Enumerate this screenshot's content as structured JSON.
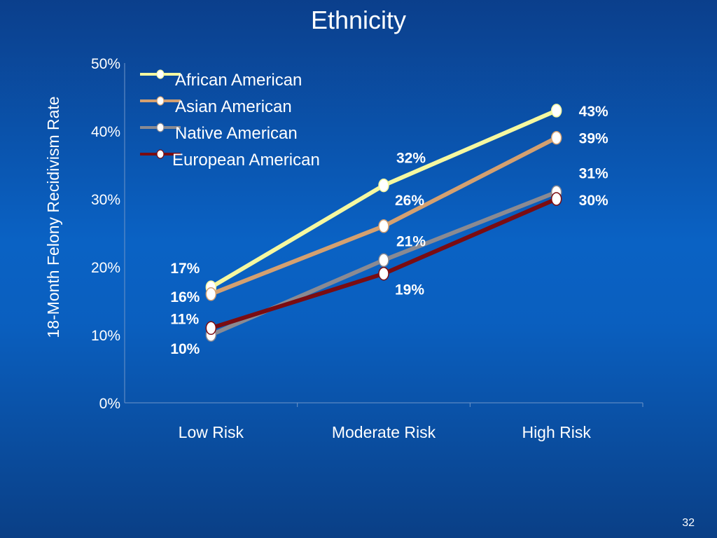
{
  "slide": {
    "title": "Ethnicity",
    "page_number": "32"
  },
  "chart_data": {
    "type": "line",
    "title": "Ethnicity",
    "xlabel": "",
    "ylabel": "18-Month Felony Recidivism Rate",
    "categories": [
      "Low Risk",
      "Moderate Risk",
      "High Risk"
    ],
    "ylim": [
      0,
      50
    ],
    "yticks": [
      "0%",
      "10%",
      "20%",
      "30%",
      "40%",
      "50%"
    ],
    "legend_position": "top-left",
    "series": [
      {
        "name": "African American",
        "values": [
          17,
          32,
          43
        ],
        "labels": [
          "17%",
          "32%",
          "43%"
        ],
        "color": "#f5f8a0"
      },
      {
        "name": "Asian American",
        "values": [
          16,
          26,
          39
        ],
        "labels": [
          "16%",
          "26%",
          "39%"
        ],
        "color": "#d4a070"
      },
      {
        "name": "Native American",
        "values": [
          10,
          21,
          31
        ],
        "labels": [
          "10%",
          "21%",
          "31%"
        ],
        "color": "#8a8a92"
      },
      {
        "name": "European American",
        "values": [
          11,
          19,
          30
        ],
        "labels": [
          "11%",
          "19%",
          "30%"
        ],
        "color": "#7a0c12"
      }
    ]
  }
}
